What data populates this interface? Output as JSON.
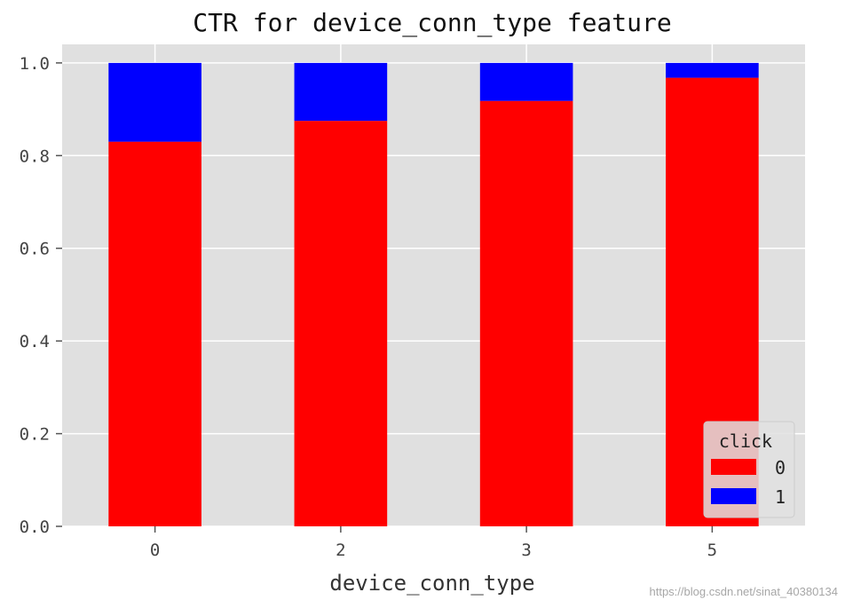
{
  "chart_data": {
    "type": "bar",
    "stacked": true,
    "title": "CTR for device_conn_type feature",
    "xlabel": "device_conn_type",
    "ylabel": "",
    "categories": [
      "0",
      "2",
      "3",
      "5"
    ],
    "series": [
      {
        "name": "0",
        "color": "#ff0000",
        "values": [
          0.83,
          0.875,
          0.918,
          0.968
        ]
      },
      {
        "name": "1",
        "color": "#0000ff",
        "values": [
          0.17,
          0.125,
          0.082,
          0.032
        ]
      }
    ],
    "ylim": [
      0,
      1.04
    ],
    "yticks": [
      "0.0",
      "0.2",
      "0.4",
      "0.6",
      "0.8",
      "1.0"
    ],
    "grid": true,
    "legend": {
      "title": "click",
      "placement": "bottom-right"
    }
  },
  "watermark": "https://blog.csdn.net/sinat_40380134"
}
